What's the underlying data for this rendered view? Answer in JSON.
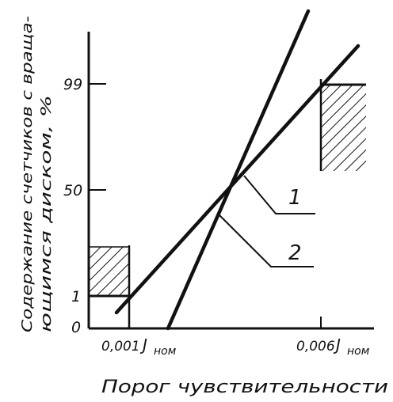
{
  "chart_data": {
    "type": "line",
    "title": "",
    "ylabel_line1": "Содержание счетчиков с враща-",
    "ylabel_line2": "ющимся диском, %",
    "xlabel": "Порог чувствительности",
    "x_tick_labels": [
      {
        "value": "0,001",
        "unit": "J",
        "sub": "ном"
      },
      {
        "value": "0,006",
        "unit": "J",
        "sub": "ном"
      }
    ],
    "y_tick_labels": [
      "0",
      "1",
      "50",
      "99"
    ],
    "series": [
      {
        "name": "1",
        "shallow": true
      },
      {
        "name": "2",
        "shallow": false
      }
    ],
    "hatched_zones": [
      "below-0,001-Jном",
      "above-0,006-Jном"
    ],
    "grid": false,
    "legend": "leader-lines"
  },
  "colors": {
    "ink": "#111111",
    "background": "#ffffff"
  }
}
